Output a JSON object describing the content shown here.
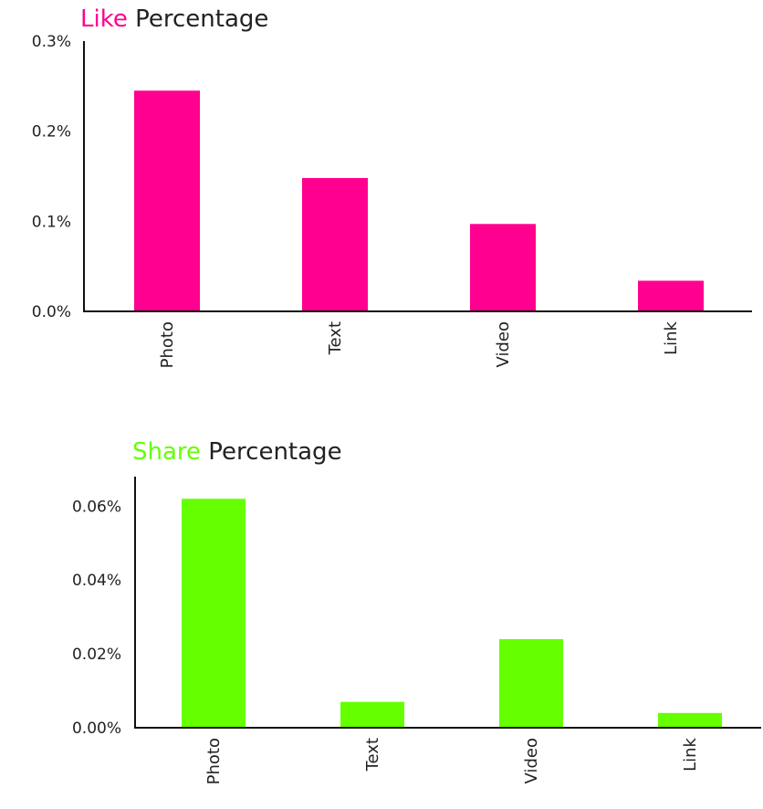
{
  "chart_data": [
    {
      "type": "bar",
      "title_highlight": "Like",
      "title_rest": " Percentage",
      "highlight_color": "#ff0090",
      "bar_color": "#ff0090",
      "categories": [
        "Photo",
        "Text",
        "Video",
        "Link"
      ],
      "values": [
        0.245,
        0.148,
        0.097,
        0.034
      ],
      "ylim": [
        0,
        0.3
      ],
      "yticks": [
        0.0,
        0.1,
        0.2,
        0.3
      ],
      "ytick_labels": [
        "0.0%",
        "0.1%",
        "0.2%",
        "0.3%"
      ],
      "xlabel": "",
      "ylabel": "",
      "grid": false
    },
    {
      "type": "bar",
      "title_highlight": "Share",
      "title_rest": " Percentage",
      "highlight_color": "#66ff00",
      "bar_color": "#66ff00",
      "categories": [
        "Photo",
        "Text",
        "Video",
        "Link"
      ],
      "values": [
        0.062,
        0.007,
        0.024,
        0.004
      ],
      "ylim": [
        0,
        0.068
      ],
      "yticks": [
        0.0,
        0.02,
        0.04,
        0.06
      ],
      "ytick_labels": [
        "0.00%",
        "0.02%",
        "0.04%",
        "0.06%"
      ],
      "xlabel": "",
      "ylabel": "",
      "grid": false
    }
  ]
}
